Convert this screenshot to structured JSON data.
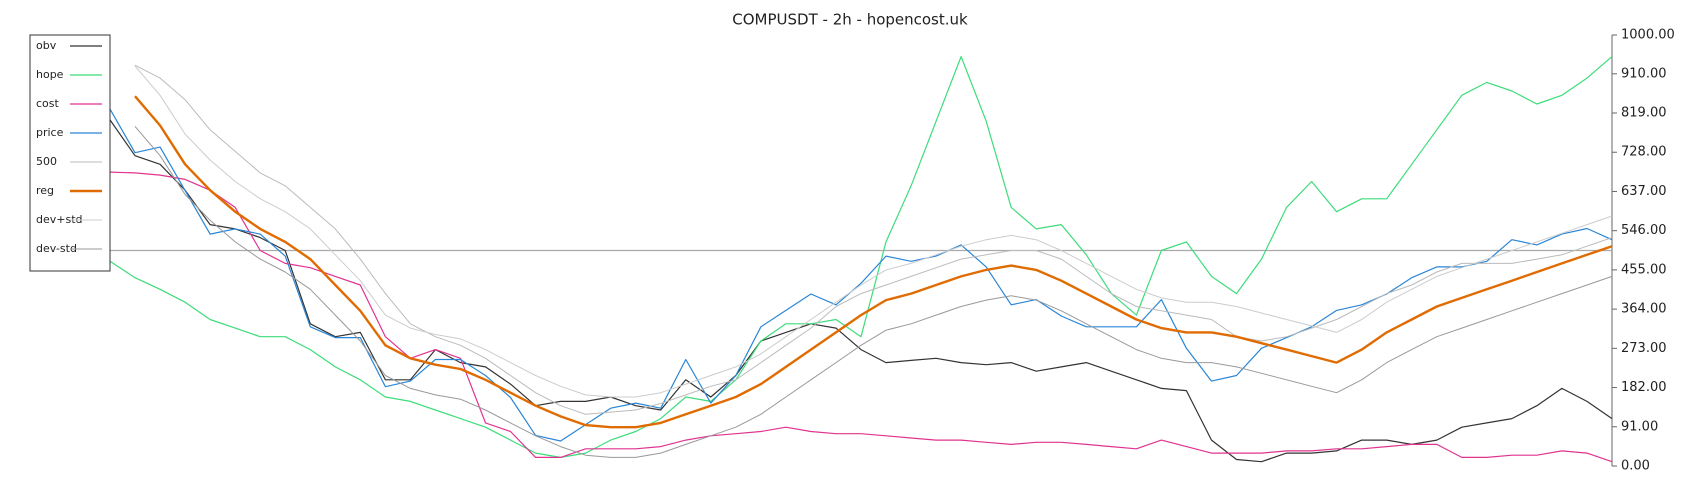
{
  "chart_data": {
    "type": "line",
    "title": "COMPUSDT - 2h - hopencost.uk",
    "ylim": [
      0,
      1000
    ],
    "yticks": [
      {
        "value": 0,
        "label": "0.00"
      },
      {
        "value": 91,
        "label": "91.00"
      },
      {
        "value": 182,
        "label": "182.00"
      },
      {
        "value": 273,
        "label": "273.00"
      },
      {
        "value": 364,
        "label": "364.00"
      },
      {
        "value": 455,
        "label": "455.00"
      },
      {
        "value": 546,
        "label": "546.00"
      },
      {
        "value": 637,
        "label": "637.00"
      },
      {
        "value": 728,
        "label": "728.00"
      },
      {
        "value": 819,
        "label": "819.00"
      },
      {
        "value": 910,
        "label": "910.00"
      },
      {
        "value": 1000,
        "label": "1000.00"
      }
    ],
    "y_axis_side": "right",
    "hline": 500,
    "legend": "upper left",
    "series": [
      {
        "name": "obv",
        "color": "#333333",
        "width": 1.2,
        "values": [
          803,
          720,
          700,
          640,
          560,
          550,
          530,
          500,
          330,
          300,
          310,
          200,
          200,
          270,
          240,
          230,
          190,
          140,
          150,
          150,
          160,
          140,
          130,
          200,
          160,
          210,
          290,
          310,
          330,
          320,
          270,
          240,
          245,
          250,
          240,
          235,
          240,
          220,
          230,
          240,
          220,
          200,
          180,
          175,
          60,
          15,
          10,
          30,
          30,
          35,
          60,
          60,
          50,
          60,
          90,
          100,
          110,
          140,
          180,
          150,
          110
        ]
      },
      {
        "name": "hope",
        "color": "#3ddc7a",
        "width": 1.2,
        "values": [
          475,
          437,
          410,
          380,
          340,
          320,
          300,
          300,
          270,
          230,
          200,
          160,
          150,
          130,
          110,
          90,
          60,
          30,
          20,
          30,
          60,
          80,
          110,
          160,
          150,
          200,
          290,
          330,
          330,
          340,
          300,
          520,
          650,
          800,
          950,
          800,
          600,
          550,
          560,
          490,
          400,
          350,
          500,
          520,
          440,
          400,
          480,
          600,
          660,
          590,
          620,
          620,
          700,
          780,
          860,
          890,
          870,
          840,
          860,
          900,
          950
        ]
      },
      {
        "name": "cost",
        "color": "#e0338f",
        "width": 1.2,
        "values": [
          682,
          680,
          675,
          665,
          640,
          600,
          500,
          470,
          460,
          440,
          420,
          300,
          250,
          270,
          250,
          100,
          80,
          20,
          20,
          40,
          40,
          40,
          45,
          60,
          70,
          75,
          80,
          90,
          80,
          75,
          75,
          70,
          65,
          60,
          60,
          55,
          50,
          55,
          55,
          50,
          45,
          40,
          60,
          45,
          30,
          30,
          30,
          35,
          35,
          40,
          40,
          45,
          50,
          50,
          20,
          20,
          25,
          25,
          35,
          30,
          10
        ]
      },
      {
        "name": "price",
        "color": "#2a86d6",
        "width": 1.2,
        "values": [
          828,
          727,
          740,
          639,
          538,
          550,
          538,
          487,
          323,
          298,
          298,
          184,
          197,
          247,
          247,
          210,
          159,
          71,
          58,
          96,
          134,
          146,
          134,
          247,
          146,
          210,
          323,
          361,
          399,
          374,
          424,
          487,
          475,
          487,
          513,
          462,
          374,
          386,
          348,
          323,
          323,
          323,
          386,
          273,
          197,
          210,
          273,
          298,
          323,
          361,
          374,
          399,
          437,
          462,
          462,
          475,
          525,
          513,
          538,
          551,
          525
        ]
      },
      {
        "name": "500",
        "color": "#bbbbbb",
        "width": 1,
        "values": [
          null,
          930,
          900,
          850,
          780,
          730,
          680,
          650,
          600,
          550,
          480,
          400,
          330,
          300,
          280,
          250,
          210,
          170,
          140,
          120,
          125,
          130,
          145,
          165,
          185,
          200,
          240,
          280,
          320,
          370,
          400,
          420,
          440,
          460,
          480,
          490,
          500,
          500,
          480,
          440,
          400,
          370,
          360,
          350,
          340,
          300,
          290,
          300,
          320,
          340,
          370,
          400,
          420,
          450,
          470,
          470,
          470,
          480,
          490,
          510,
          530
        ]
      },
      {
        "name": "reg",
        "color": "#e06b00",
        "width": 2.4,
        "values": [
          null,
          858,
          790,
          700,
          640,
          590,
          550,
          520,
          480,
          420,
          360,
          280,
          250,
          235,
          225,
          200,
          170,
          140,
          115,
          95,
          90,
          90,
          100,
          120,
          140,
          160,
          190,
          230,
          270,
          310,
          350,
          385,
          400,
          420,
          440,
          455,
          465,
          455,
          430,
          400,
          370,
          340,
          320,
          310,
          310,
          300,
          285,
          270,
          255,
          240,
          270,
          310,
          340,
          370,
          390,
          410,
          430,
          450,
          470,
          490,
          510
        ]
      },
      {
        "name": "dev+std",
        "color": "#cccccc",
        "width": 1,
        "values": [
          null,
          928,
          860,
          770,
          710,
          660,
          620,
          590,
          550,
          490,
          430,
          350,
          320,
          305,
          295,
          270,
          240,
          210,
          185,
          165,
          160,
          160,
          170,
          190,
          210,
          230,
          260,
          300,
          340,
          380,
          420,
          455,
          470,
          490,
          510,
          525,
          535,
          525,
          500,
          470,
          440,
          410,
          390,
          380,
          380,
          370,
          355,
          340,
          325,
          310,
          340,
          380,
          410,
          440,
          460,
          480,
          500,
          520,
          540,
          560,
          580
        ]
      },
      {
        "name": "dev-std",
        "color": "#999999",
        "width": 1,
        "values": [
          null,
          788,
          720,
          630,
          570,
          520,
          480,
          450,
          410,
          350,
          290,
          210,
          180,
          165,
          155,
          130,
          100,
          70,
          45,
          25,
          20,
          20,
          30,
          50,
          70,
          90,
          120,
          160,
          200,
          240,
          280,
          315,
          330,
          350,
          370,
          385,
          395,
          385,
          360,
          330,
          300,
          270,
          250,
          240,
          240,
          230,
          215,
          200,
          185,
          170,
          200,
          240,
          270,
          300,
          320,
          340,
          360,
          380,
          400,
          420,
          440
        ]
      }
    ]
  }
}
